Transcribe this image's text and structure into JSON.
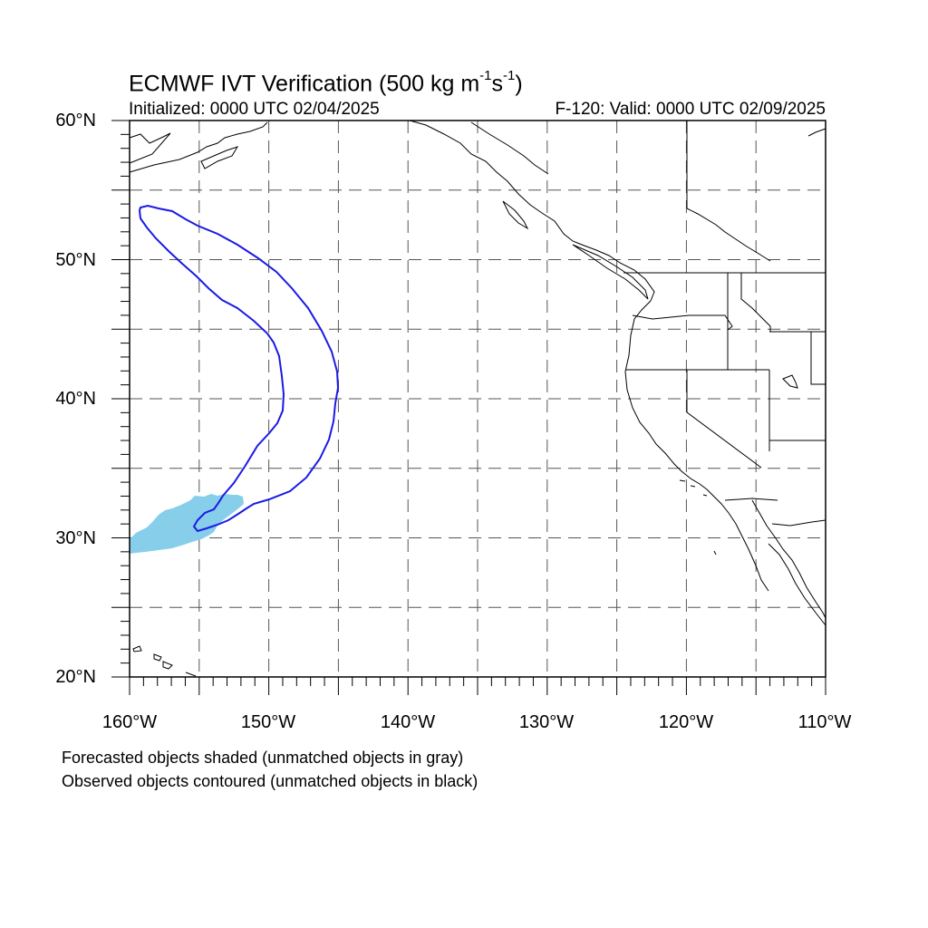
{
  "title": {
    "prefix": "ECMWF IVT Verification (500 kg m",
    "exp1": "-1",
    "mid": "s",
    "exp2": "-1",
    "suffix": ")"
  },
  "initialized": "Initialized: 0000 UTC 02/04/2025",
  "valid": "F-120: Valid: 0000 UTC 02/09/2025",
  "lat_labels": [
    "60°N",
    "50°N",
    "40°N",
    "30°N",
    "20°N"
  ],
  "lon_labels": [
    "160°W",
    "150°W",
    "140°W",
    "130°W",
    "120°W",
    "110°W"
  ],
  "caption": [
    "Forecasted objects shaded (unmatched objects in gray)",
    "Observed objects contoured (unmatched objects in black)"
  ],
  "map": {
    "lon_range": [
      -160,
      -110
    ],
    "lat_range": [
      20,
      60
    ],
    "grid_lon_step": 5,
    "grid_lat_step": 5,
    "grid_style": "dashed",
    "colors": {
      "forecast_fill": "#87ceeb",
      "observed_contour": "#1a1ae6",
      "coastline": "#000000",
      "grid": "#555555"
    }
  }
}
